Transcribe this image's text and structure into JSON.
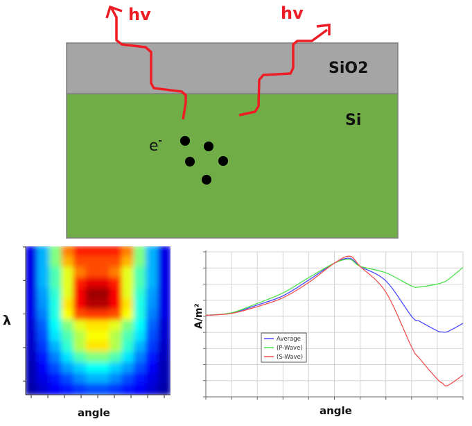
{
  "diagram": {
    "photon_label": "hv",
    "oxide_label": "SiO2",
    "silicon_label": "Si",
    "electron_label": "e",
    "electron_sup": "-",
    "colors": {
      "oxide": "#a5a5a5",
      "silicon": "#70ad47",
      "photon": "#ee1c24",
      "electron": "#000000"
    }
  },
  "chart_data": [
    {
      "type": "heatmap",
      "xlabel": "angle",
      "ylabel": "λ",
      "colormap": "jet",
      "matrix": [
        [
          0.1,
          0.3,
          0.5,
          0.75,
          0.85,
          0.85,
          0.85,
          0.85,
          0.75,
          0.5,
          0.3,
          0.1
        ],
        [
          0.1,
          0.3,
          0.5,
          0.7,
          0.8,
          0.8,
          0.8,
          0.8,
          0.7,
          0.5,
          0.3,
          0.1
        ],
        [
          0.1,
          0.3,
          0.45,
          0.6,
          0.75,
          0.8,
          0.8,
          0.75,
          0.6,
          0.45,
          0.3,
          0.1
        ],
        [
          0.1,
          0.3,
          0.45,
          0.6,
          0.85,
          0.9,
          0.9,
          0.85,
          0.6,
          0.45,
          0.3,
          0.1
        ],
        [
          0.1,
          0.28,
          0.42,
          0.6,
          0.88,
          0.97,
          0.97,
          0.88,
          0.6,
          0.42,
          0.28,
          0.1
        ],
        [
          0.1,
          0.27,
          0.4,
          0.65,
          0.88,
          0.95,
          0.95,
          0.88,
          0.65,
          0.4,
          0.27,
          0.1
        ],
        [
          0.1,
          0.25,
          0.4,
          0.62,
          0.8,
          0.82,
          0.82,
          0.8,
          0.62,
          0.4,
          0.25,
          0.1
        ],
        [
          0.08,
          0.22,
          0.38,
          0.5,
          0.6,
          0.65,
          0.65,
          0.6,
          0.5,
          0.38,
          0.22,
          0.08
        ],
        [
          0.08,
          0.2,
          0.35,
          0.45,
          0.55,
          0.62,
          0.62,
          0.55,
          0.45,
          0.35,
          0.2,
          0.08
        ],
        [
          0.07,
          0.18,
          0.3,
          0.42,
          0.55,
          0.65,
          0.65,
          0.55,
          0.42,
          0.3,
          0.18,
          0.07
        ],
        [
          0.06,
          0.15,
          0.25,
          0.35,
          0.45,
          0.5,
          0.5,
          0.45,
          0.35,
          0.25,
          0.15,
          0.06
        ],
        [
          0.05,
          0.12,
          0.2,
          0.28,
          0.33,
          0.38,
          0.38,
          0.33,
          0.28,
          0.2,
          0.12,
          0.05
        ],
        [
          0.05,
          0.1,
          0.15,
          0.2,
          0.26,
          0.3,
          0.3,
          0.26,
          0.2,
          0.15,
          0.1,
          0.05
        ],
        [
          0.04,
          0.08,
          0.12,
          0.15,
          0.18,
          0.2,
          0.2,
          0.18,
          0.15,
          0.12,
          0.08,
          0.04
        ]
      ]
    },
    {
      "type": "line",
      "xlabel": "angle",
      "ylabel": "A/m²",
      "grid": true,
      "legend_position": "center-left",
      "xlim": [
        0,
        10
      ],
      "ylim": [
        0,
        9
      ],
      "x": [
        0,
        1,
        2,
        3,
        4,
        5,
        5.6,
        6,
        7,
        8,
        8.3,
        9,
        9.2,
        9.4,
        10
      ],
      "series": [
        {
          "name": "Average",
          "color": "#4a4aff",
          "values": [
            5.06,
            5.2,
            5.7,
            6.27,
            7.25,
            8.3,
            8.6,
            8.1,
            7.2,
            5.0,
            4.7,
            4.1,
            4.03,
            4.05,
            4.56
          ]
        },
        {
          "name": "(P-Wave)",
          "color": "#4ee24e",
          "values": [
            5.06,
            5.22,
            5.8,
            6.45,
            7.4,
            8.3,
            8.53,
            8.1,
            7.7,
            6.88,
            6.82,
            7.0,
            7.1,
            7.25,
            8.03
          ]
        },
        {
          "name": "(S-Wave)",
          "color": "#f05050",
          "values": [
            5.06,
            5.18,
            5.6,
            6.15,
            7.1,
            8.3,
            8.73,
            8.1,
            6.5,
            3.1,
            2.4,
            1.1,
            0.85,
            0.7,
            1.35
          ]
        }
      ]
    }
  ]
}
